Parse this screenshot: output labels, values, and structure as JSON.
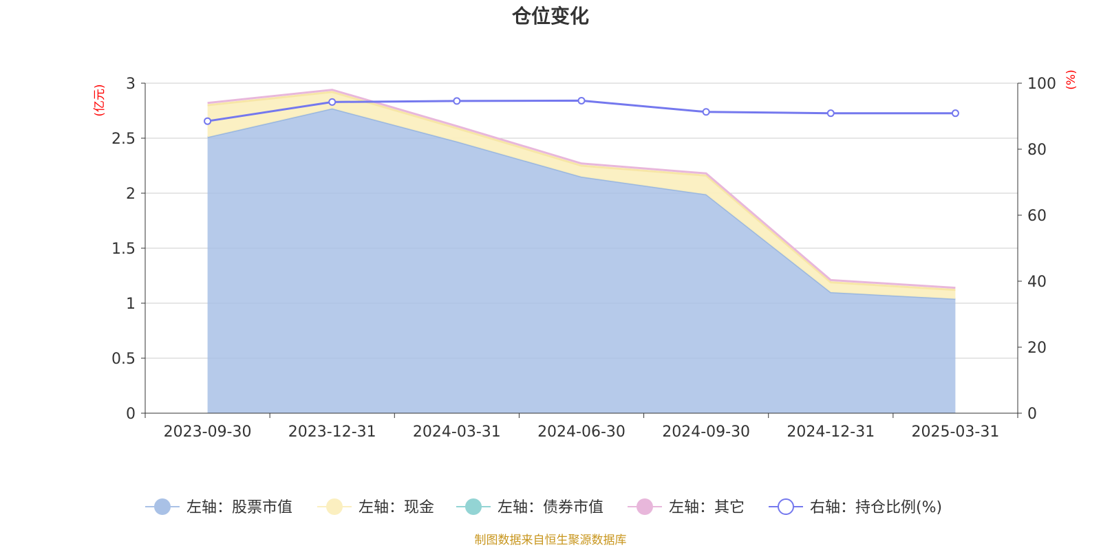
{
  "colors": {
    "stock": "#a9c1e6",
    "stock_line": "#9ab7df",
    "cash": "#fbefc0",
    "cash_line": "#f7e6a6",
    "bond": "#93d4d4",
    "other_line": "#e8b7db",
    "ratio": "#7478ee",
    "grid": "#cccccc",
    "axis": "#333333",
    "unit": "#ff0000",
    "source": "#c8961e"
  },
  "chart_data": {
    "type": "area",
    "title": "仓位变化",
    "left_unit": "(亿元)",
    "right_unit": "(%)",
    "categories": [
      "2023-09-30",
      "2023-12-31",
      "2024-03-31",
      "2024-06-30",
      "2024-09-30",
      "2024-12-31",
      "2025-03-31"
    ],
    "left_axis": {
      "min": 0,
      "max": 3,
      "ticks": [
        "0",
        "0.5",
        "1",
        "1.5",
        "2",
        "2.5",
        "3"
      ]
    },
    "right_axis": {
      "min": 0,
      "max": 100,
      "ticks": [
        "0",
        "20",
        "40",
        "60",
        "80",
        "100"
      ]
    },
    "series": [
      {
        "name": "左轴：股票市值",
        "axis": "left",
        "stacked": true,
        "values": [
          2.51,
          2.77,
          2.47,
          2.15,
          1.99,
          1.1,
          1.04
        ]
      },
      {
        "name": "左轴：现金",
        "axis": "left",
        "stacked": true,
        "values": [
          0.29,
          0.15,
          0.12,
          0.1,
          0.17,
          0.09,
          0.08
        ]
      },
      {
        "name": "左轴：债券市值",
        "axis": "left",
        "stacked": true,
        "values": [
          0,
          0,
          0,
          0,
          0,
          0,
          0
        ]
      },
      {
        "name": "左轴：其它",
        "axis": "left",
        "stacked": true,
        "values": [
          0.02,
          0.02,
          0.02,
          0.02,
          0.02,
          0.02,
          0.02
        ]
      },
      {
        "name": "右轴：持仓比例(%)",
        "axis": "right",
        "stacked": false,
        "values": [
          88.5,
          94.3,
          94.6,
          94.7,
          91.3,
          90.9,
          90.9
        ]
      }
    ],
    "legend_position": "bottom",
    "grid": true
  },
  "source": "制图数据来自恒生聚源数据库"
}
